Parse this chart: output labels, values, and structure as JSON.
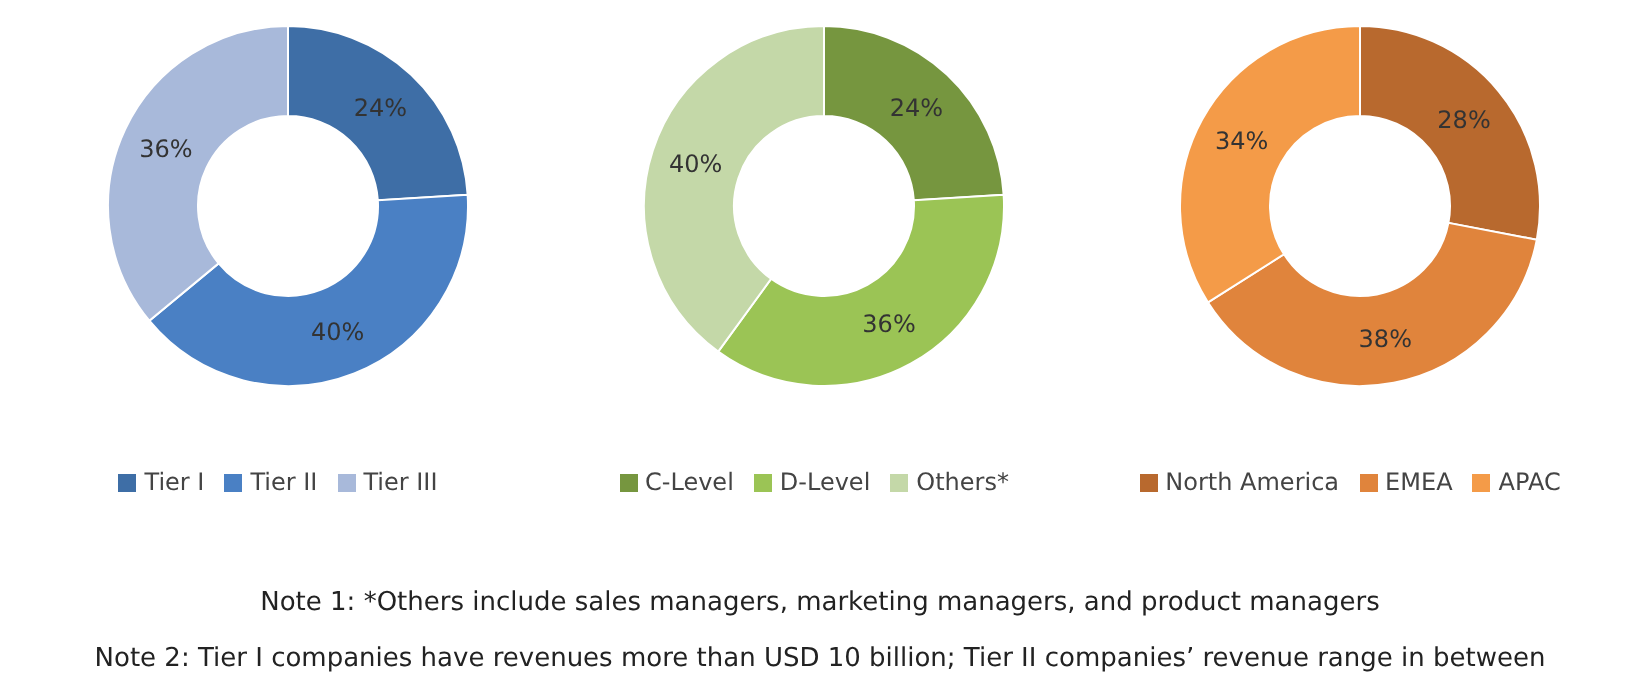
{
  "chart_data": [
    {
      "type": "donut",
      "categories": [
        "Tier I",
        "Tier II",
        "Tier III"
      ],
      "values": [
        24,
        40,
        36
      ],
      "value_labels": [
        "24%",
        "40%",
        "36%"
      ],
      "colors": [
        "#3e6ea6",
        "#4a80c4",
        "#a8b9da"
      ],
      "legend": "bottom",
      "annotations": [
        "Note 1: *Others include sales managers, marketing managers, and product managers",
        "Note 2: Tier I companies have revenues more than USD 10 billion; Tier II companies’ revenue range in between"
      ]
    },
    {
      "type": "donut",
      "categories": [
        "C-Level",
        "D-Level",
        "Others*"
      ],
      "values": [
        24,
        36,
        40
      ],
      "value_labels": [
        "24%",
        "36%",
        "40%"
      ],
      "colors": [
        "#76963f",
        "#9bc455",
        "#c4d8a8"
      ],
      "legend": "bottom"
    },
    {
      "type": "donut",
      "categories": [
        "North America",
        "EMEA",
        "APAC"
      ],
      "values": [
        28,
        38,
        34
      ],
      "value_labels": [
        "28%",
        "38%",
        "34%"
      ],
      "colors": [
        "#b8692e",
        "#e0843c",
        "#f49b48"
      ],
      "legend": "bottom"
    }
  ]
}
